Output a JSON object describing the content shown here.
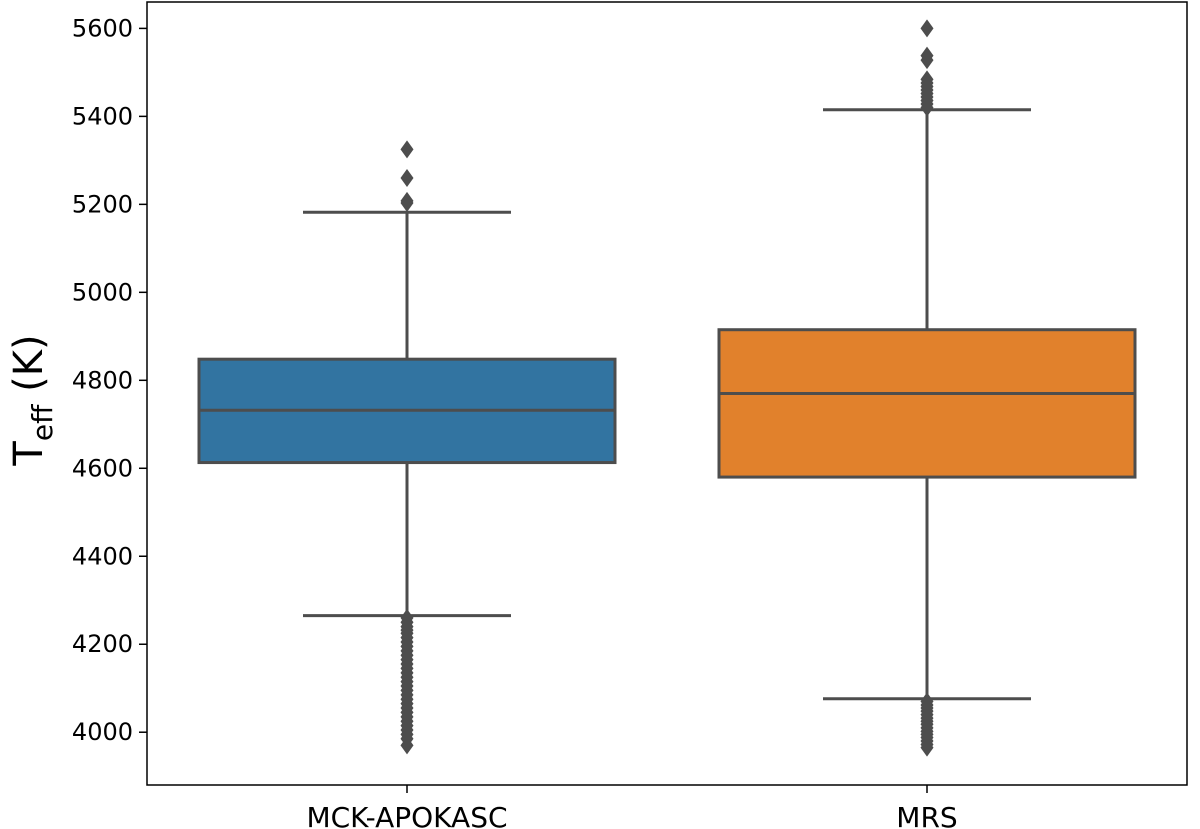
{
  "chart_data": {
    "type": "box",
    "title": "",
    "xlabel": "",
    "ylabel": {
      "main": "T",
      "sub": "eff",
      "unit": " (K)"
    },
    "ylim": [
      3880,
      5660
    ],
    "yticks": [
      4000,
      4200,
      4400,
      4600,
      4800,
      5000,
      5200,
      5400,
      5600
    ],
    "grid": false,
    "categories": [
      "MCK-APOKASC",
      "MRS"
    ],
    "series": [
      {
        "category": "MCK-APOKASC",
        "color": "#3274a1",
        "q1": 4613,
        "median": 4732,
        "q3": 4848,
        "whisker_low": 4265,
        "whisker_high": 5182,
        "outliers_high": [
          5203,
          5208,
          5260,
          5325
        ],
        "outliers_low": [
          4260,
          4250,
          4240,
          4232,
          4225,
          4215,
          4205,
          4195,
          4185,
          4175,
          4165,
          4155,
          4145,
          4135,
          4125,
          4115,
          4105,
          4095,
          4085,
          4075,
          4065,
          4055,
          4045,
          4035,
          4025,
          4015,
          4005,
          3995,
          3985,
          3970
        ]
      },
      {
        "category": "MRS",
        "color": "#e1812c",
        "q1": 4580,
        "median": 4770,
        "q3": 4915,
        "whisker_low": 4076,
        "whisker_high": 5415,
        "outliers_high": [
          5420,
          5428,
          5436,
          5444,
          5452,
          5460,
          5468,
          5476,
          5484,
          5528,
          5538,
          5600
        ],
        "outliers_low": [
          4070,
          4062,
          4055,
          4048,
          4040,
          4032,
          4025,
          4018,
          4010,
          4002,
          3995,
          3988,
          3980,
          3972,
          3965
        ]
      }
    ],
    "line_color": "#4d4d4d"
  }
}
